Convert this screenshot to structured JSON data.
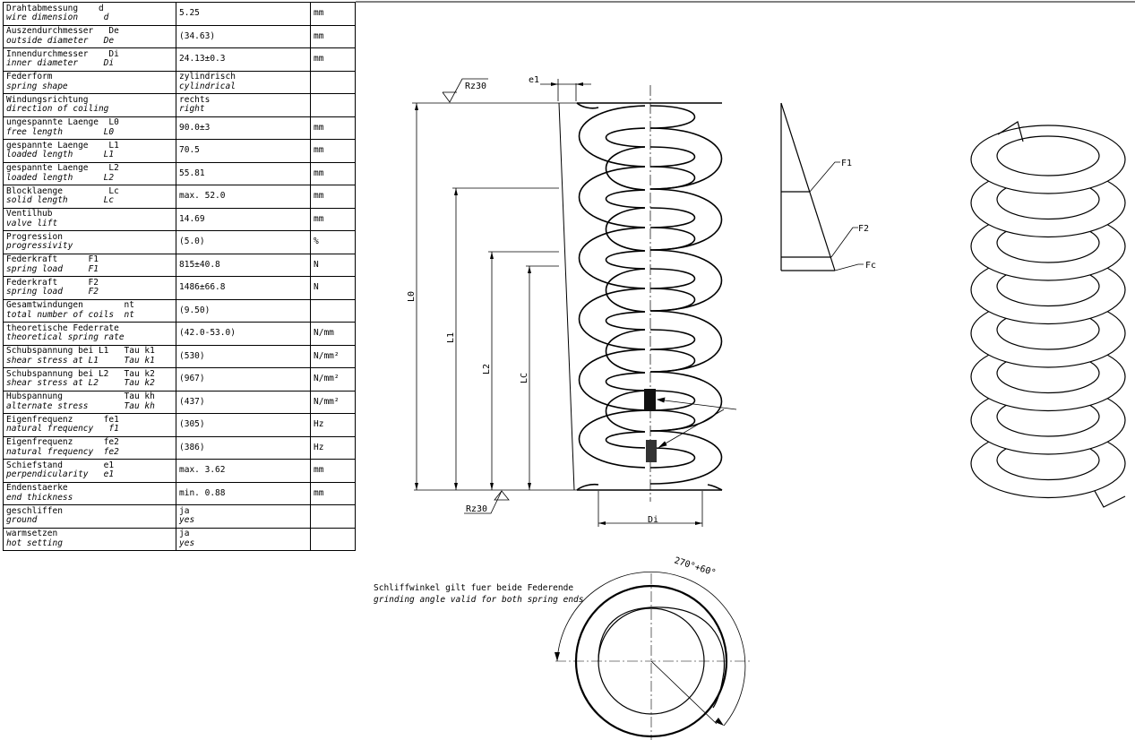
{
  "rows": [
    {
      "de": "Drahtabmessung    d",
      "en": "wire dimension     d",
      "value": "5.25",
      "unit": "mm"
    },
    {
      "de": "Auszendurchmesser   De",
      "en": "outside diameter   De",
      "value": "(34.63)",
      "unit": "mm"
    },
    {
      "de": "Innendurchmesser    Di",
      "en": "inner diameter     Di",
      "value": "24.13±0.3",
      "unit": "mm"
    },
    {
      "de": "Federform",
      "en": "spring shape",
      "value": "zylindrisch",
      "value_en": "cylindrical",
      "unit": ""
    },
    {
      "de": "Windungsrichtung",
      "en": "direction of coiling",
      "value": "rechts",
      "value_en": "right",
      "unit": ""
    },
    {
      "de": "ungespannte Laenge  L0",
      "en": "free length        L0",
      "value": "90.0±3",
      "unit": "mm"
    },
    {
      "de": "gespannte Laenge    L1",
      "en": "loaded length      L1",
      "value": "70.5",
      "unit": "mm"
    },
    {
      "de": "gespannte Laenge    L2",
      "en": "loaded length      L2",
      "value": "55.81",
      "unit": "mm"
    },
    {
      "de": "Blocklaenge         Lc",
      "en": "solid length       Lc",
      "value": "max. 52.0",
      "unit": "mm"
    },
    {
      "de": "Ventilhub",
      "en": "valve lift",
      "value": "14.69",
      "unit": "mm"
    },
    {
      "de": "Progression",
      "en": "progressivity",
      "value": "(5.0)",
      "unit": "%"
    },
    {
      "de": "Federkraft      F1",
      "en": "spring load     F1",
      "value": "815±40.8",
      "unit": "N"
    },
    {
      "de": "Federkraft      F2",
      "en": "spring load     F2",
      "value": "1486±66.8",
      "unit": "N"
    },
    {
      "de": "Gesamtwindungen        nt",
      "en": "total number of coils  nt",
      "value": "(9.50)",
      "unit": ""
    },
    {
      "de": "theoretische Federrate",
      "en": "theoretical spring rate",
      "value": "(42.0-53.0)",
      "unit": "N/mm"
    },
    {
      "de": "Schubspannung bei L1   Tau k1",
      "en": "shear stress at L1     Tau k1",
      "value": "(530)",
      "unit": "N/mm²"
    },
    {
      "de": "Schubspannung bei L2   Tau k2",
      "en": "shear stress at L2     Tau k2",
      "value": "(967)",
      "unit": "N/mm²"
    },
    {
      "de": "Hubspannung            Tau kh",
      "en": "alternate stress       Tau kh",
      "value": "(437)",
      "unit": "N/mm²"
    },
    {
      "de": "Eigenfrequenz      fe1",
      "en": "natural frequency   f1",
      "value": "(305)",
      "unit": "Hz"
    },
    {
      "de": "Eigenfrequenz      fe2",
      "en": "natural frequency  fe2",
      "value": "(386)",
      "unit": "Hz"
    },
    {
      "de": "Schiefstand        e1",
      "en": "perpendicularity   e1",
      "value": "max. 3.62",
      "unit": "mm"
    },
    {
      "de": "Endenstaerke",
      "en": "end thickness",
      "value": "min. 0.88",
      "unit": "mm"
    },
    {
      "de": "geschliffen",
      "en": "ground",
      "value": "ja",
      "value_en": "yes",
      "unit": ""
    },
    {
      "de": "warmsetzen",
      "en": "hot setting",
      "value": "ja",
      "value_en": "yes",
      "unit": ""
    }
  ],
  "dims": {
    "rz_top": "Rz30",
    "rz_bottom": "Rz30",
    "e1": "e1",
    "L0": "L0",
    "L1": "L1",
    "L2": "L2",
    "LC": "LC",
    "Di": "Di"
  },
  "force_diagram": {
    "f1": "F1",
    "f2": "F2",
    "fc": "Fc"
  },
  "grind_note": {
    "de": "Schliffwinkel gilt fuer beide Federende",
    "en": "grinding angle valid for both spring ends",
    "angle": "270°+60°"
  }
}
